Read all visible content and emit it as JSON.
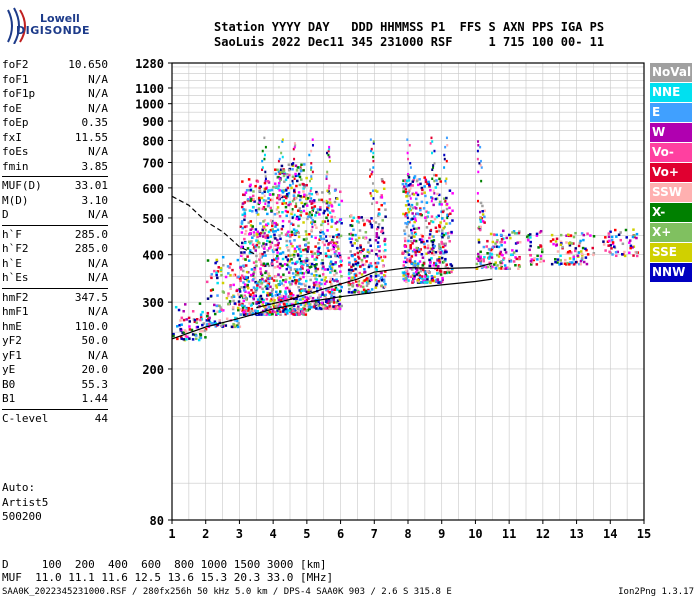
{
  "logo": {
    "line1": "Lowell",
    "line2": "DIGISONDE"
  },
  "header": {
    "line1": "Station YYYY DAY   DDD HHMMSS P1  FFS S AXN PPS IGA PS",
    "line2": "SaoLuis 2022 Dec11 345 231000 RSF     1 715 100 00- 11"
  },
  "params": {
    "group1": [
      {
        "k": "foF2",
        "v": "10.650"
      },
      {
        "k": "foF1",
        "v": "N/A"
      },
      {
        "k": "foF1p",
        "v": "N/A"
      },
      {
        "k": "foE",
        "v": "N/A"
      },
      {
        "k": "foEp",
        "v": "0.35"
      },
      {
        "k": "fxI",
        "v": "11.55"
      },
      {
        "k": "foEs",
        "v": "N/A"
      },
      {
        "k": "fmin",
        "v": "3.85"
      }
    ],
    "group2": [
      {
        "k": "MUF(D)",
        "v": "33.01"
      },
      {
        "k": "M(D)",
        "v": "3.10"
      },
      {
        "k": "D",
        "v": "N/A"
      }
    ],
    "group3": [
      {
        "k": "h`F",
        "v": "285.0"
      },
      {
        "k": "h`F2",
        "v": "285.0"
      },
      {
        "k": "h`E",
        "v": "N/A"
      },
      {
        "k": "h`Es",
        "v": "N/A"
      }
    ],
    "group4": [
      {
        "k": "hmF2",
        "v": "347.5"
      },
      {
        "k": "hmF1",
        "v": "N/A"
      },
      {
        "k": "hmE",
        "v": "110.0"
      },
      {
        "k": "yF2",
        "v": "50.0"
      },
      {
        "k": "yF1",
        "v": "N/A"
      },
      {
        "k": "yE",
        "v": "20.0"
      },
      {
        "k": "B0",
        "v": "55.3"
      },
      {
        "k": "B1",
        "v": "1.44"
      }
    ],
    "group5": [
      {
        "k": "C-level",
        "v": "44"
      }
    ]
  },
  "auto": {
    "line1": "Auto:",
    "line2": "Artist5",
    "line3": "500200"
  },
  "legend": [
    {
      "label": "NoVal",
      "color": "#a0a0a0"
    },
    {
      "label": "NNE",
      "color": "#00e0f0"
    },
    {
      "label": "E",
      "color": "#40a0ff"
    },
    {
      "label": "W",
      "color": "#b000b0"
    },
    {
      "label": "Vo-",
      "color": "#ff40a0"
    },
    {
      "label": "Vo+",
      "color": "#e00030"
    },
    {
      "label": "SSW",
      "color": "#ffb0b0"
    },
    {
      "label": "X-",
      "color": "#008000"
    },
    {
      "label": "X+",
      "color": "#80c060"
    },
    {
      "label": "SSE",
      "color": "#d0d000"
    },
    {
      "label": "NNW",
      "color": "#0000c0"
    }
  ],
  "muf_table": {
    "line1": "D     100  200  400  600  800 1000 1500 3000 [km]",
    "line2": "MUF  11.0 11.1 11.6 12.5 13.6 15.3 20.3 33.0 [MHz]"
  },
  "footer": {
    "left": "SAA0K_2022345231000.RSF / 280fx256h 50 kHz 5.0 km / DPS-4 SAA0K 903 / 2.6 S 315.8 E",
    "right": "Ion2Png 1.3.17"
  },
  "chart_data": {
    "type": "scatter",
    "title": "",
    "xlabel": "",
    "ylabel": "",
    "xlim": [
      1,
      15
    ],
    "ylim": [
      80,
      1280
    ],
    "y_scale": "log",
    "x_ticks": [
      1,
      2,
      3,
      4,
      5,
      6,
      7,
      8,
      9,
      10,
      11,
      12,
      13,
      14,
      15
    ],
    "y_ticks": [
      80,
      200,
      300,
      400,
      500,
      600,
      700,
      800,
      900,
      1000,
      1100,
      1280
    ],
    "grid": true,
    "scatter_regions": [
      {
        "x": [
          1.0,
          2.0
        ],
        "y": [
          240,
          300
        ],
        "density": 0.5
      },
      {
        "x": [
          2.0,
          3.0
        ],
        "y": [
          260,
          400
        ],
        "density": 0.5
      },
      {
        "x": [
          3.0,
          4.0
        ],
        "y": [
          280,
          640
        ],
        "density": 0.9
      },
      {
        "x": [
          4.0,
          5.0
        ],
        "y": [
          280,
          700
        ],
        "density": 0.9
      },
      {
        "x": [
          5.0,
          6.0
        ],
        "y": [
          290,
          600
        ],
        "density": 0.85
      },
      {
        "x": [
          6.2,
          6.9
        ],
        "y": [
          320,
          520
        ],
        "density": 0.8
      },
      {
        "x": [
          7.0,
          7.3
        ],
        "y": [
          330,
          640
        ],
        "density": 0.7
      },
      {
        "x": [
          7.8,
          9.0
        ],
        "y": [
          340,
          660
        ],
        "density": 0.8
      },
      {
        "x": [
          9.0,
          9.3
        ],
        "y": [
          360,
          600
        ],
        "density": 0.6
      },
      {
        "x": [
          10.0,
          10.3
        ],
        "y": [
          370,
          560
        ],
        "density": 0.6
      },
      {
        "x": [
          10.3,
          11.3
        ],
        "y": [
          370,
          470
        ],
        "density": 0.7
      },
      {
        "x": [
          11.5,
          12.0
        ],
        "y": [
          380,
          470
        ],
        "density": 0.5
      },
      {
        "x": [
          12.2,
          13.5
        ],
        "y": [
          380,
          460
        ],
        "density": 0.6
      },
      {
        "x": [
          13.7,
          14.8
        ],
        "y": [
          400,
          470
        ],
        "density": 0.5
      }
    ],
    "series": [
      {
        "type": "line",
        "style": "solid",
        "x": [
          1,
          2,
          3,
          4,
          5,
          6,
          7,
          8,
          9,
          10,
          10.5
        ],
        "y": [
          240,
          258,
          272,
          288,
          300,
          310,
          318,
          326,
          333,
          340,
          345
        ]
      },
      {
        "type": "line",
        "style": "solid",
        "x": [
          3.5,
          4.5,
          5.5,
          6.5,
          7,
          8,
          9,
          10,
          10.5
        ],
        "y": [
          290,
          305,
          325,
          345,
          360,
          370,
          368,
          370,
          380
        ]
      },
      {
        "type": "line",
        "style": "dashed",
        "x": [
          1,
          1.5,
          2,
          2.5,
          3,
          3.5
        ],
        "y": [
          570,
          540,
          490,
          460,
          420,
          400
        ]
      }
    ]
  }
}
